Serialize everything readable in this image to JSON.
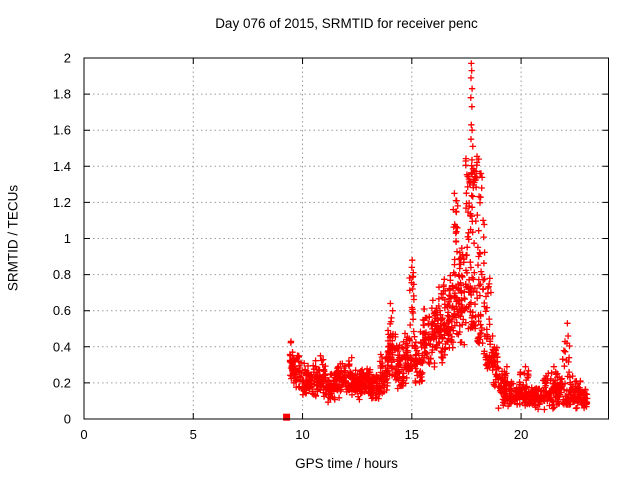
{
  "title": "Day 076 of 2015, SRMTID for receiver penc",
  "colors": {
    "marker": "#ff0000",
    "grid": "#9c9c9c",
    "axis": "#000000",
    "background": "#ffffff"
  },
  "chart_data": {
    "type": "scatter",
    "title": "Day 076 of 2015, SRMTID for receiver penc",
    "xlabel": "GPS time / hours",
    "ylabel": "SRMTID / TECUs",
    "xlim": [
      0,
      24
    ],
    "ylim": [
      0,
      2
    ],
    "x_ticks": {
      "values": [
        0,
        5,
        10,
        15,
        20
      ],
      "labels": [
        "0",
        "5",
        "10",
        "15",
        "20"
      ]
    },
    "y_ticks": {
      "values": [
        0,
        0.2,
        0.4,
        0.6,
        0.8,
        1,
        1.2,
        1.4,
        1.6,
        1.8,
        2
      ],
      "labels": [
        "0",
        "0.2",
        "0.4",
        "0.6",
        "0.8",
        "1",
        "1.2",
        "1.4",
        "1.6",
        "1.8",
        "2"
      ]
    },
    "grid": "dotted",
    "legend": "none",
    "marker": "plus",
    "marker_color": "#ff0000",
    "data_time_range_hours": [
      9.27,
      23.05
    ],
    "peak": {
      "time_hours": 17.7,
      "value_tecus": 1.97
    },
    "bands_format": "[t_start_hour, t_end_hour, y_min, y_max, n_points, mode(0=bell,1=low_skew)]",
    "density_bands": [
      [
        9.4,
        9.58,
        0.2,
        0.43,
        26,
        0
      ],
      [
        9.58,
        9.95,
        0.14,
        0.38,
        42,
        0
      ],
      [
        9.95,
        10.55,
        0.12,
        0.31,
        66,
        0
      ],
      [
        10.55,
        11.05,
        0.1,
        0.34,
        58,
        0
      ],
      [
        11.05,
        11.55,
        0.09,
        0.27,
        58,
        0
      ],
      [
        11.55,
        12.15,
        0.11,
        0.33,
        68,
        0
      ],
      [
        12.15,
        12.65,
        0.1,
        0.28,
        60,
        0
      ],
      [
        12.65,
        13.1,
        0.12,
        0.31,
        54,
        0
      ],
      [
        13.1,
        13.55,
        0.08,
        0.27,
        54,
        0
      ],
      [
        13.55,
        13.9,
        0.12,
        0.37,
        44,
        0
      ],
      [
        13.9,
        14.25,
        0.18,
        0.6,
        52,
        0
      ],
      [
        14.25,
        14.6,
        0.14,
        0.42,
        40,
        0
      ],
      [
        14.6,
        14.9,
        0.18,
        0.48,
        38,
        0
      ],
      [
        14.88,
        15.12,
        0.28,
        0.82,
        34,
        1
      ],
      [
        15.12,
        15.5,
        0.16,
        0.5,
        46,
        0
      ],
      [
        15.5,
        15.95,
        0.2,
        0.66,
        56,
        0
      ],
      [
        15.95,
        16.4,
        0.25,
        0.76,
        60,
        0
      ],
      [
        16.4,
        16.75,
        0.3,
        0.82,
        46,
        0
      ],
      [
        16.7,
        17.1,
        0.35,
        0.95,
        50,
        0
      ],
      [
        16.8,
        17.12,
        0.95,
        1.26,
        12,
        0
      ],
      [
        17.1,
        17.45,
        0.4,
        1.05,
        52,
        0
      ],
      [
        17.45,
        18.0,
        0.5,
        1.48,
        88,
        1
      ],
      [
        17.55,
        17.95,
        1.25,
        1.47,
        16,
        0
      ],
      [
        18.0,
        18.35,
        0.42,
        1.38,
        44,
        1
      ],
      [
        18.3,
        18.62,
        0.28,
        0.8,
        36,
        1
      ],
      [
        18.62,
        18.95,
        0.12,
        0.5,
        40,
        0
      ],
      [
        18.95,
        19.35,
        0.05,
        0.3,
        56,
        0
      ],
      [
        19.35,
        19.95,
        0.04,
        0.22,
        64,
        0
      ],
      [
        19.95,
        20.35,
        0.05,
        0.28,
        50,
        0
      ],
      [
        20.35,
        21.0,
        0.04,
        0.2,
        68,
        0
      ],
      [
        21.0,
        21.55,
        0.05,
        0.26,
        58,
        0
      ],
      [
        21.55,
        21.9,
        0.06,
        0.28,
        40,
        0
      ],
      [
        21.9,
        22.3,
        0.08,
        0.44,
        46,
        1
      ],
      [
        22.3,
        22.72,
        0.05,
        0.25,
        48,
        0
      ],
      [
        22.72,
        23.05,
        0.04,
        0.18,
        34,
        0
      ]
    ],
    "notable_points": [
      [
        17.72,
        1.97
      ],
      [
        17.74,
        1.93
      ],
      [
        17.71,
        1.89
      ],
      [
        17.76,
        1.83
      ],
      [
        17.7,
        1.78
      ],
      [
        17.75,
        1.73
      ],
      [
        17.72,
        1.63
      ],
      [
        17.76,
        1.6
      ],
      [
        17.71,
        1.55
      ],
      [
        17.79,
        1.51
      ],
      [
        18.06,
        1.44
      ],
      [
        18.12,
        1.36
      ],
      [
        18.2,
        1.28
      ],
      [
        18.26,
        1.1
      ],
      [
        16.95,
        1.25
      ],
      [
        17.02,
        1.21
      ],
      [
        16.9,
        1.16
      ],
      [
        22.12,
        0.53
      ],
      [
        22.15,
        0.46
      ],
      [
        22.1,
        0.42
      ],
      [
        15.02,
        0.88
      ],
      [
        15.0,
        0.84
      ],
      [
        15.06,
        0.79
      ],
      [
        14.02,
        0.64
      ],
      [
        14.12,
        0.6
      ],
      [
        9.47,
        0.43
      ],
      [
        10.82,
        0.35
      ],
      [
        12.25,
        0.34
      ],
      [
        21.5,
        0.29
      ],
      [
        20.2,
        0.29
      ]
    ],
    "start_marker_square": {
      "x": 9.27,
      "y": 0.01
    }
  }
}
